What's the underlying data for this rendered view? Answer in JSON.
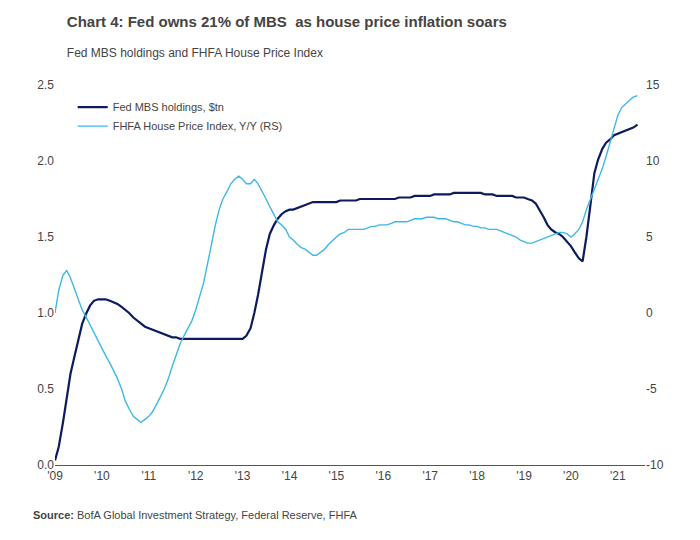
{
  "chart_data": {
    "type": "line",
    "title": "Chart 4: Fed owns 21% of MBS  as house price inflation soars",
    "subtitle": "Fed MBS holdings and FHFA House Price Index",
    "annotations": [
      "Source:",
      "BofA Global Investment Strategy, Federal Reserve, FHFA"
    ],
    "legend": "upper left",
    "grid": false,
    "xlim": [
      2009.0,
      2021.58
    ],
    "xticks": [
      {
        "value": 2009,
        "label": "'09"
      },
      {
        "value": 2010,
        "label": "'10"
      },
      {
        "value": 2011,
        "label": "'11"
      },
      {
        "value": 2012,
        "label": "'12"
      },
      {
        "value": 2013,
        "label": "'13"
      },
      {
        "value": 2014,
        "label": "'14"
      },
      {
        "value": 2015,
        "label": "'15"
      },
      {
        "value": 2016,
        "label": "'16"
      },
      {
        "value": 2017,
        "label": "'17"
      },
      {
        "value": 2018,
        "label": "'18"
      },
      {
        "value": 2019,
        "label": "'19"
      },
      {
        "value": 2020,
        "label": "'20"
      },
      {
        "value": 2021,
        "label": "'21"
      }
    ],
    "ylim": [
      0.0,
      2.5
    ],
    "yticks": [
      {
        "value": 0.0,
        "label": "0.0"
      },
      0.5,
      {
        "value": 1.0,
        "label": "1.0"
      },
      1.5,
      {
        "value": 2.0,
        "label": "2.0"
      },
      2.5
    ],
    "y2lim": [
      -10,
      15
    ],
    "y2ticks": [
      -10,
      -5,
      0,
      5,
      10,
      15
    ],
    "x": [
      2009.0,
      2009.08,
      2009.17,
      2009.25,
      2009.33,
      2009.42,
      2009.5,
      2009.58,
      2009.67,
      2009.75,
      2009.83,
      2009.92,
      2010.0,
      2010.08,
      2010.17,
      2010.25,
      2010.33,
      2010.42,
      2010.5,
      2010.58,
      2010.67,
      2010.75,
      2010.83,
      2010.92,
      2011.0,
      2011.08,
      2011.17,
      2011.25,
      2011.33,
      2011.42,
      2011.5,
      2011.58,
      2011.67,
      2011.75,
      2011.83,
      2011.92,
      2012.0,
      2012.08,
      2012.17,
      2012.25,
      2012.33,
      2012.42,
      2012.5,
      2012.58,
      2012.67,
      2012.75,
      2012.83,
      2012.92,
      2013.0,
      2013.08,
      2013.17,
      2013.25,
      2013.33,
      2013.42,
      2013.5,
      2013.58,
      2013.67,
      2013.75,
      2013.83,
      2013.92,
      2014.0,
      2014.08,
      2014.17,
      2014.25,
      2014.33,
      2014.42,
      2014.5,
      2014.58,
      2014.67,
      2014.75,
      2014.83,
      2014.92,
      2015.0,
      2015.08,
      2015.17,
      2015.25,
      2015.33,
      2015.42,
      2015.5,
      2015.58,
      2015.67,
      2015.75,
      2015.83,
      2015.92,
      2016.0,
      2016.08,
      2016.17,
      2016.25,
      2016.33,
      2016.42,
      2016.5,
      2016.58,
      2016.67,
      2016.75,
      2016.83,
      2016.92,
      2017.0,
      2017.08,
      2017.17,
      2017.25,
      2017.33,
      2017.42,
      2017.5,
      2017.58,
      2017.67,
      2017.75,
      2017.83,
      2017.92,
      2018.0,
      2018.08,
      2018.17,
      2018.25,
      2018.33,
      2018.42,
      2018.5,
      2018.58,
      2018.67,
      2018.75,
      2018.83,
      2018.92,
      2019.0,
      2019.08,
      2019.17,
      2019.25,
      2019.33,
      2019.42,
      2019.5,
      2019.58,
      2019.67,
      2019.75,
      2019.83,
      2019.92,
      2020.0,
      2020.08,
      2020.17,
      2020.25,
      2020.33,
      2020.42,
      2020.5,
      2020.58,
      2020.67,
      2020.75,
      2020.83,
      2020.92,
      2021.0,
      2021.08,
      2021.17,
      2021.25,
      2021.33,
      2021.42
    ],
    "series": [
      {
        "name": "Fed MBS holdings, $tn",
        "color": "#0d1b5e",
        "axis": "y",
        "values": [
          0.03,
          0.12,
          0.28,
          0.45,
          0.6,
          0.72,
          0.83,
          0.93,
          1.0,
          1.05,
          1.08,
          1.09,
          1.09,
          1.09,
          1.08,
          1.07,
          1.06,
          1.04,
          1.02,
          1.0,
          0.97,
          0.95,
          0.93,
          0.91,
          0.9,
          0.89,
          0.88,
          0.87,
          0.86,
          0.85,
          0.84,
          0.84,
          0.83,
          0.83,
          0.83,
          0.83,
          0.83,
          0.83,
          0.83,
          0.83,
          0.83,
          0.83,
          0.83,
          0.83,
          0.83,
          0.83,
          0.83,
          0.83,
          0.83,
          0.85,
          0.9,
          1.0,
          1.12,
          1.28,
          1.42,
          1.52,
          1.58,
          1.62,
          1.65,
          1.67,
          1.68,
          1.68,
          1.69,
          1.7,
          1.71,
          1.72,
          1.73,
          1.73,
          1.73,
          1.73,
          1.73,
          1.73,
          1.73,
          1.74,
          1.74,
          1.74,
          1.74,
          1.74,
          1.75,
          1.75,
          1.75,
          1.75,
          1.75,
          1.75,
          1.75,
          1.75,
          1.75,
          1.75,
          1.76,
          1.76,
          1.76,
          1.76,
          1.77,
          1.77,
          1.77,
          1.77,
          1.77,
          1.78,
          1.78,
          1.78,
          1.78,
          1.78,
          1.79,
          1.79,
          1.79,
          1.79,
          1.79,
          1.79,
          1.79,
          1.79,
          1.78,
          1.78,
          1.78,
          1.77,
          1.77,
          1.77,
          1.77,
          1.77,
          1.76,
          1.76,
          1.76,
          1.75,
          1.74,
          1.72,
          1.68,
          1.63,
          1.58,
          1.55,
          1.53,
          1.52,
          1.5,
          1.47,
          1.44,
          1.4,
          1.36,
          1.34,
          1.5,
          1.72,
          1.92,
          2.01,
          2.08,
          2.12,
          2.14,
          2.17,
          2.18,
          2.19,
          2.2,
          2.21,
          2.22,
          2.24
        ]
      },
      {
        "name": "FHFA House Price Index, Y/Y (RS)",
        "color": "#3eb8e5",
        "axis": "y2",
        "values": [
          0.0,
          1.5,
          2.5,
          2.8,
          2.3,
          1.5,
          0.8,
          0.2,
          -0.3,
          -0.8,
          -1.2,
          -1.8,
          -2.3,
          -2.8,
          -3.3,
          -3.8,
          -4.3,
          -5.0,
          -5.8,
          -6.3,
          -6.8,
          -7.0,
          -7.2,
          -7.0,
          -6.8,
          -6.5,
          -6.0,
          -5.5,
          -5.0,
          -4.3,
          -3.5,
          -2.8,
          -2.0,
          -1.5,
          -1.0,
          -0.5,
          0.2,
          1.0,
          2.0,
          3.2,
          4.5,
          5.8,
          6.8,
          7.5,
          8.0,
          8.5,
          8.8,
          9.0,
          8.8,
          8.5,
          8.5,
          8.8,
          8.5,
          8.0,
          7.5,
          7.0,
          6.5,
          6.0,
          5.8,
          5.5,
          5.0,
          4.8,
          4.5,
          4.3,
          4.2,
          4.0,
          3.8,
          3.8,
          4.0,
          4.2,
          4.5,
          4.8,
          5.0,
          5.2,
          5.3,
          5.5,
          5.5,
          5.5,
          5.5,
          5.5,
          5.6,
          5.7,
          5.7,
          5.8,
          5.8,
          5.8,
          5.9,
          6.0,
          6.0,
          6.0,
          6.0,
          6.1,
          6.2,
          6.2,
          6.2,
          6.3,
          6.3,
          6.3,
          6.2,
          6.2,
          6.2,
          6.1,
          6.0,
          6.0,
          5.9,
          5.8,
          5.8,
          5.7,
          5.7,
          5.6,
          5.6,
          5.5,
          5.5,
          5.5,
          5.4,
          5.3,
          5.2,
          5.1,
          5.0,
          4.8,
          4.7,
          4.6,
          4.6,
          4.7,
          4.8,
          4.9,
          5.0,
          5.1,
          5.2,
          5.3,
          5.3,
          5.2,
          5.0,
          5.2,
          5.5,
          6.0,
          6.8,
          7.5,
          8.2,
          8.8,
          9.5,
          10.3,
          11.2,
          12.2,
          13.0,
          13.5,
          13.8,
          14.0,
          14.2,
          14.3
        ]
      }
    ]
  }
}
